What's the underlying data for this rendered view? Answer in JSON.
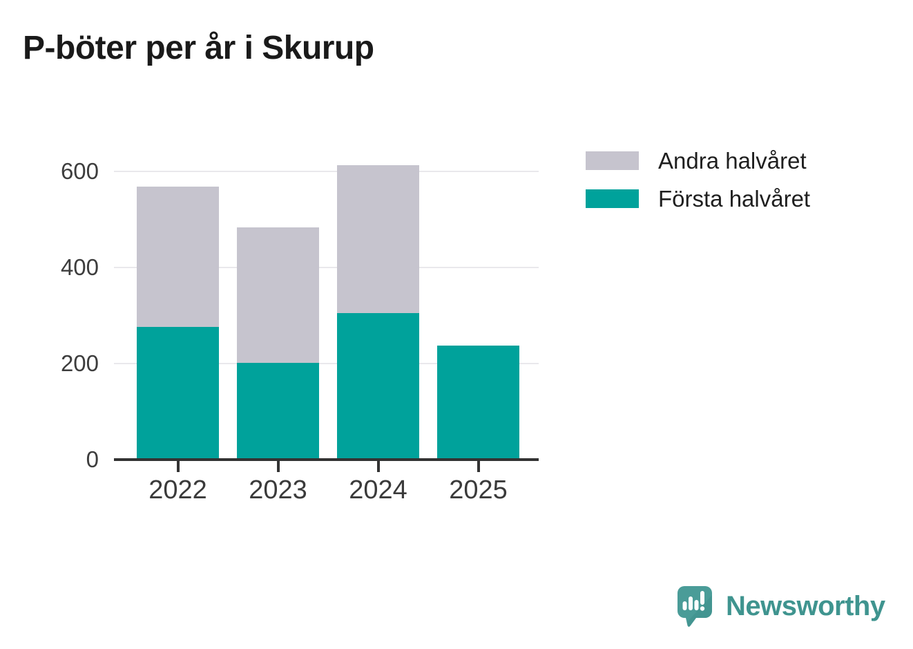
{
  "title": "P-böter per år i Skurup",
  "chart_data": {
    "type": "bar",
    "stacked": true,
    "title": "P-böter per år i Skurup",
    "xlabel": "",
    "ylabel": "",
    "categories": [
      "2022",
      "2023",
      "2024",
      "2025"
    ],
    "series": [
      {
        "name": "Första halvåret",
        "color": "#00a29b",
        "values": [
          276,
          201,
          305,
          237
        ]
      },
      {
        "name": "Andra halvåret",
        "color": "#c6c4ce",
        "values": [
          292,
          282,
          308,
          0
        ]
      }
    ],
    "totals": [
      568,
      483,
      613,
      237
    ],
    "yticks": [
      0,
      200,
      400,
      600
    ],
    "ytick_labels": [
      "0",
      "200",
      "400",
      "600"
    ],
    "ylim": [
      0,
      625
    ],
    "grid": true,
    "legend_position": "top-right",
    "axis_color": "#333333",
    "gridline_color": "#e9e8ec",
    "tick_label_color": "#3a3a3a"
  },
  "legend": {
    "items": [
      {
        "label": "Andra halvåret",
        "color": "#c6c4ce"
      },
      {
        "label": "Första halvåret",
        "color": "#00a29b"
      }
    ]
  },
  "branding": {
    "name": "Newsworthy",
    "icon": "newsworthy-speech-bubble-chart-icon",
    "text_color": "#3f948f",
    "icon_color": "#4a9c98",
    "icon_shade_color": "#2f7f7c"
  }
}
